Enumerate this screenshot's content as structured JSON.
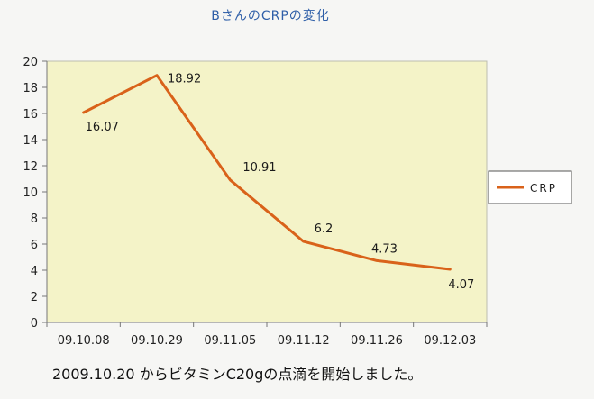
{
  "chart_data": {
    "type": "line",
    "title": "BさんのCRPの変化",
    "categories": [
      "09.10.08",
      "09.10.29",
      "09.11.05",
      "09.11.12",
      "09.11.26",
      "09.12.03"
    ],
    "series": [
      {
        "name": "CRP",
        "values": [
          16.07,
          18.92,
          10.91,
          6.2,
          4.73,
          4.07
        ]
      }
    ],
    "data_labels": [
      "16.07",
      "18.92",
      "10.91",
      "6.2",
      "4.73",
      "4.07"
    ],
    "ylim": [
      0,
      20
    ],
    "yticks": [
      0,
      2,
      4,
      6,
      8,
      10,
      12,
      14,
      16,
      18,
      20
    ],
    "grid": false,
    "legend": "right",
    "colors": {
      "line": "#d9621a",
      "plot_bg": "#f4f3c8"
    }
  },
  "note": "2009.10.20 からビタミンC20gの点滴を開始しました。"
}
